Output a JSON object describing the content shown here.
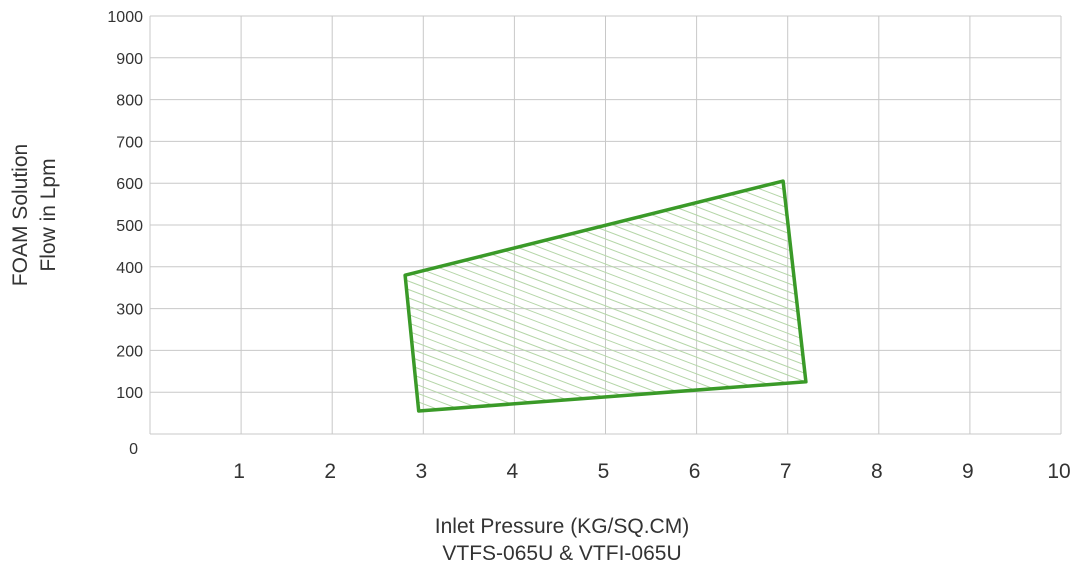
{
  "chart_data": {
    "type": "area",
    "title": "",
    "xlabel": "Inlet Pressure (KG/SQ.CM)",
    "xlabel_line2": "VTFS-065U & VTFI-065U",
    "ylabel_line1": "FOAM Solution",
    "ylabel_line2": "Flow in Lpm",
    "xlim": [
      0,
      10
    ],
    "ylim": [
      0,
      1000
    ],
    "x_ticks": [
      "1",
      "2",
      "3",
      "4",
      "5",
      "6",
      "7",
      "8",
      "9",
      "10"
    ],
    "y_ticks": [
      "0",
      "100",
      "200",
      "300",
      "400",
      "500",
      "600",
      "700",
      "800",
      "900",
      "1000"
    ],
    "grid": true,
    "series": [
      {
        "fill_pattern": "diagonal-hatch",
        "color": "#3a9a28",
        "hatch_color": "#b5d6a8",
        "polygon": [
          {
            "x": 2.8,
            "y": 380
          },
          {
            "x": 6.95,
            "y": 605
          },
          {
            "x": 7.2,
            "y": 125
          },
          {
            "x": 2.95,
            "y": 55
          }
        ]
      }
    ]
  }
}
